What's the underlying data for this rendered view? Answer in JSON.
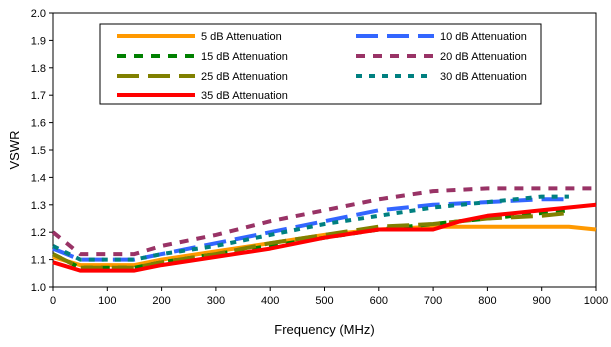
{
  "chart_data": {
    "type": "line",
    "xlabel": "Frequency (MHz)",
    "ylabel": "VSWR",
    "xlim": [
      0,
      1000
    ],
    "ylim": [
      1.0,
      2.0
    ],
    "xticks": [
      0,
      100,
      200,
      300,
      400,
      500,
      600,
      700,
      800,
      900,
      1000
    ],
    "yticks": [
      1.0,
      1.1,
      1.2,
      1.3,
      1.4,
      1.5,
      1.6,
      1.7,
      1.8,
      1.9,
      2.0
    ],
    "ytick_labels": [
      "1.0",
      "1.1",
      "1.2",
      "1.3",
      "1.4",
      "1.5",
      "1.6",
      "1.7",
      "1.8",
      "1.9",
      "2.0"
    ],
    "grid": "none",
    "legend_position": "top-inside",
    "series": [
      {
        "name": "5 dB Attenuation",
        "color": "#ff9900",
        "style": "solid",
        "x": [
          0,
          50,
          100,
          150,
          200,
          300,
          400,
          500,
          600,
          700,
          800,
          900,
          950,
          1000
        ],
        "y": [
          1.11,
          1.08,
          1.08,
          1.08,
          1.1,
          1.13,
          1.16,
          1.19,
          1.21,
          1.22,
          1.22,
          1.22,
          1.22,
          1.21
        ]
      },
      {
        "name": "10 dB Attenuation",
        "color": "#3366ff",
        "style": "long-dash",
        "x": [
          0,
          50,
          100,
          150,
          200,
          300,
          400,
          500,
          600,
          700,
          800,
          900,
          950
        ],
        "y": [
          1.14,
          1.1,
          1.1,
          1.1,
          1.12,
          1.16,
          1.2,
          1.24,
          1.28,
          1.3,
          1.31,
          1.32,
          1.32
        ]
      },
      {
        "name": "15 dB Attenuation",
        "color": "#008000",
        "style": "dash",
        "x": [
          0,
          50,
          100,
          150,
          200,
          300,
          400,
          500,
          600,
          700,
          800,
          900,
          950
        ],
        "y": [
          1.12,
          1.07,
          1.07,
          1.07,
          1.09,
          1.12,
          1.15,
          1.18,
          1.21,
          1.23,
          1.25,
          1.27,
          1.28
        ]
      },
      {
        "name": "20 dB Attenuation",
        "color": "#993366",
        "style": "dash",
        "x": [
          0,
          50,
          100,
          150,
          200,
          300,
          400,
          500,
          600,
          700,
          800,
          900,
          950,
          1000
        ],
        "y": [
          1.2,
          1.12,
          1.12,
          1.12,
          1.15,
          1.19,
          1.24,
          1.28,
          1.32,
          1.35,
          1.36,
          1.36,
          1.36,
          1.36
        ]
      },
      {
        "name": "25 dB Attenuation",
        "color": "#808000",
        "style": "long-dash",
        "x": [
          0,
          50,
          100,
          150,
          200,
          300,
          400,
          500,
          600,
          700,
          800,
          900,
          950
        ],
        "y": [
          1.12,
          1.07,
          1.07,
          1.07,
          1.09,
          1.12,
          1.16,
          1.19,
          1.22,
          1.23,
          1.25,
          1.26,
          1.27
        ]
      },
      {
        "name": "30 dB Attenuation",
        "color": "#008080",
        "style": "short-dash",
        "x": [
          0,
          50,
          100,
          150,
          200,
          300,
          400,
          500,
          600,
          700,
          800,
          900,
          950
        ],
        "y": [
          1.15,
          1.1,
          1.1,
          1.1,
          1.12,
          1.15,
          1.19,
          1.23,
          1.26,
          1.29,
          1.31,
          1.33,
          1.33
        ]
      },
      {
        "name": "35 dB Attenuation",
        "color": "#ff0000",
        "style": "solid",
        "x": [
          0,
          50,
          100,
          150,
          200,
          300,
          400,
          500,
          600,
          700,
          750,
          800,
          900,
          1000
        ],
        "y": [
          1.09,
          1.06,
          1.06,
          1.06,
          1.08,
          1.11,
          1.14,
          1.18,
          1.21,
          1.21,
          1.24,
          1.26,
          1.28,
          1.3
        ]
      }
    ]
  }
}
